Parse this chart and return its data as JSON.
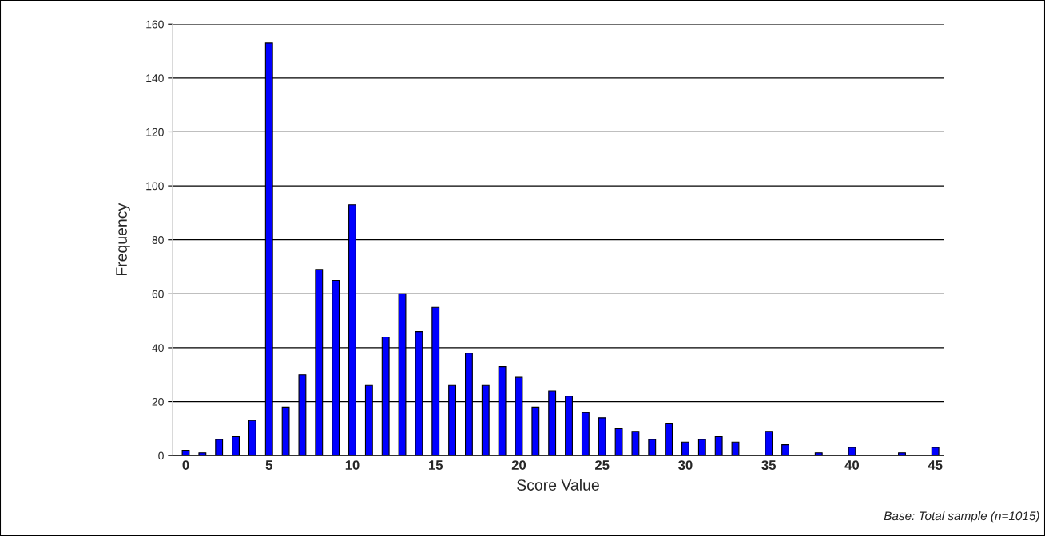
{
  "chart_data": {
    "type": "bar",
    "xlabel": "Score Value",
    "ylabel": "Frequency",
    "categories": [
      "0",
      null,
      null,
      null,
      null,
      "5",
      null,
      null,
      null,
      null,
      "10",
      null,
      null,
      null,
      null,
      "15",
      null,
      null,
      null,
      null,
      "20",
      null,
      null,
      null,
      null,
      "25",
      null,
      null,
      null,
      null,
      "30",
      null,
      null,
      null,
      null,
      "35",
      null,
      null,
      null,
      null,
      "40",
      null,
      null,
      null,
      null,
      "45"
    ],
    "values": [
      2,
      1,
      6,
      7,
      13,
      153,
      18,
      30,
      69,
      65,
      93,
      26,
      44,
      60,
      46,
      55,
      26,
      38,
      26,
      33,
      29,
      18,
      24,
      22,
      16,
      14,
      10,
      9,
      6,
      12,
      5,
      6,
      7,
      5,
      null,
      9,
      4,
      null,
      1,
      null,
      3,
      null,
      null,
      1,
      null,
      3
    ],
    "color": "#0000ff",
    "ylim": [
      0,
      160
    ],
    "yticks": [
      0,
      20,
      40,
      60,
      80,
      100,
      120,
      140,
      160
    ],
    "grid": "y",
    "legend": false,
    "annotations": [
      "Base: Total sample (n=1015)"
    ]
  }
}
